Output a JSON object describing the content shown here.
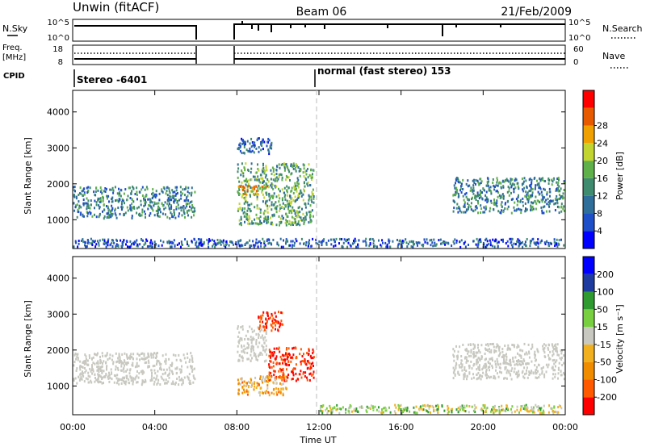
{
  "header": {
    "station": "Unwin (fitACF)",
    "beam": "Beam 06",
    "date": "21/Feb/2009"
  },
  "top_panels": {
    "nsky_label": "N.Sky",
    "nsky_ticks": [
      "10^5",
      "10^0"
    ],
    "nsearch_label": "N.Search",
    "nsearch_ticks": [
      "10^5",
      "10^0"
    ],
    "freq_label": "Freq.",
    "freq_unit": "[MHz]",
    "freq_ticks": [
      "18",
      "8"
    ],
    "nave_label": "Nave",
    "nave_ticks": [
      "60",
      "0"
    ],
    "cpid_label": "CPID",
    "cpid_segments": [
      "Stereo -6401",
      "normal (fast stereo) 153"
    ]
  },
  "colors": {
    "power": [
      "#0000ff",
      "#1e4ec8",
      "#2f6e9a",
      "#3f8b6f",
      "#5fb04a",
      "#c2d430",
      "#f0a000",
      "#e85a00",
      "#ff0000"
    ],
    "velocity": [
      "#ff0000",
      "#ff5a00",
      "#f08c00",
      "#f0b020",
      "#c8c8c0",
      "#78d040",
      "#2f9a2f",
      "#1e3ca0",
      "#0000ff"
    ]
  },
  "chart_data": [
    {
      "type": "heatmap",
      "name": "power",
      "xlabel": "",
      "ylabel": "Slant Range [km]",
      "xlim": [
        0,
        24
      ],
      "ylim": [
        200,
        4600
      ],
      "yticks": [
        "1000",
        "2000",
        "3000",
        "4000"
      ],
      "colorbar_label": "Power [dB]",
      "colorbar_ticks": [
        "4",
        "8",
        "12",
        "16",
        "20",
        "24",
        "28"
      ],
      "no_data_intervals": [
        [
          6.0,
          8.0
        ]
      ],
      "echo_regions": [
        {
          "t0": 0.0,
          "t1": 6.0,
          "r0": 1000,
          "r1": 1950,
          "level": 12
        },
        {
          "t0": 8.0,
          "t1": 11.8,
          "r0": 800,
          "r1": 2600,
          "level": 16
        },
        {
          "t0": 8.0,
          "t1": 9.6,
          "r0": 1650,
          "r1": 2000,
          "level": 24
        },
        {
          "t0": 8.0,
          "t1": 9.8,
          "r0": 2800,
          "r1": 3300,
          "level": 8
        },
        {
          "t0": 18.5,
          "t1": 24.0,
          "r0": 1150,
          "r1": 2200,
          "level": 12
        },
        {
          "t0": 0.0,
          "t1": 24.0,
          "r0": 200,
          "r1": 500,
          "level": 8
        }
      ]
    },
    {
      "type": "heatmap",
      "name": "velocity",
      "xlabel": "Time UT",
      "ylabel": "Slant Range [km]",
      "xlim": [
        0,
        24
      ],
      "ylim": [
        200,
        4600
      ],
      "xticks": [
        "00:00",
        "04:00",
        "08:00",
        "12:00",
        "16:00",
        "20:00",
        "00:00"
      ],
      "yticks": [
        "1000",
        "2000",
        "3000",
        "4000"
      ],
      "colorbar_label": "Velocity [m s⁻¹]",
      "colorbar_ticks": [
        "200",
        "100",
        "50",
        "15",
        "-15",
        "-50",
        "-100",
        "-200"
      ],
      "no_data_intervals": [
        [
          6.0,
          8.0
        ]
      ],
      "echo_regions": [
        {
          "t0": 0.0,
          "t1": 6.0,
          "r0": 1000,
          "r1": 1950,
          "v": 0
        },
        {
          "t0": 8.0,
          "t1": 9.5,
          "r0": 1650,
          "r1": 2700,
          "v": 0
        },
        {
          "t0": 9.5,
          "t1": 11.8,
          "r0": 1100,
          "r1": 2100,
          "v": -200
        },
        {
          "t0": 9.0,
          "t1": 10.3,
          "r0": 2500,
          "r1": 3100,
          "v": -200
        },
        {
          "t0": 8.0,
          "t1": 10.5,
          "r0": 700,
          "r1": 1300,
          "v": -50
        },
        {
          "t0": 18.5,
          "t1": 24.0,
          "r0": 1150,
          "r1": 2200,
          "v": 0
        },
        {
          "t0": 12.0,
          "t1": 24.0,
          "r0": 200,
          "r1": 500,
          "v": 15
        }
      ]
    }
  ]
}
